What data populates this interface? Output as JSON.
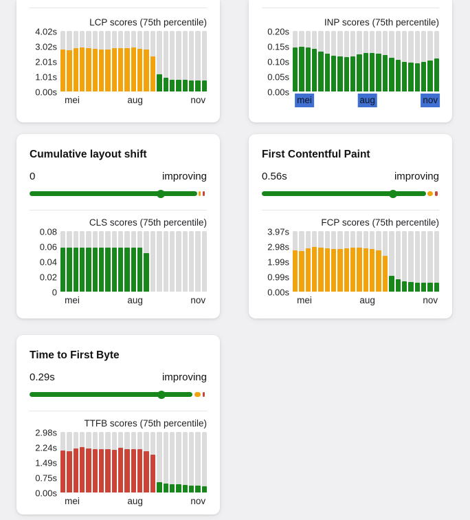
{
  "colors": {
    "green": "#17871c",
    "orange": "#f1a20d",
    "red": "#cc4437",
    "track": "#dcdcdc",
    "highlight": "#3e6fd1"
  },
  "cards": {
    "lcp": {
      "chart_index": 0
    },
    "inp": {
      "chart_index": 1
    },
    "cls": {
      "title": "Cumulative layout shift",
      "value": "0",
      "trend": "improving",
      "chart_index": 2,
      "bar": {
        "green_pct": 94.5,
        "orange_pct": 1.2,
        "red_pct": 1.0,
        "marker_pct": 74
      }
    },
    "fcp": {
      "title": "First Contentful Paint",
      "value": "0.56s",
      "trend": "improving",
      "chart_index": 3,
      "bar": {
        "green_pct": 92.6,
        "orange_pct": 3.1,
        "red_pct": 1.4,
        "marker_pct": 74
      }
    },
    "ttfb": {
      "title": "Time to First Byte",
      "value": "0.29s",
      "trend": "improving",
      "chart_index": 4,
      "bar": {
        "green_pct": 92.0,
        "orange_pct": 3.5,
        "red_pct": 1.2,
        "marker_pct": 74.5
      }
    }
  },
  "chart_data": [
    {
      "type": "bar",
      "title": "LCP scores (75th percentile)",
      "x": [
        "mei",
        "aug",
        "nov"
      ],
      "yticks": [
        "4.02s",
        "3.02s",
        "2.01s",
        "1.01s",
        "0.00s"
      ],
      "ylim": [
        0,
        4.02
      ],
      "values": [
        2.8,
        2.72,
        2.86,
        2.94,
        2.9,
        2.84,
        2.8,
        2.8,
        2.86,
        2.9,
        2.9,
        2.92,
        2.84,
        2.78,
        2.32,
        1.15,
        0.93,
        0.78,
        0.76,
        0.79,
        0.75,
        0.72,
        0.74
      ],
      "bar_colors": [
        "orange",
        "orange",
        "orange",
        "orange",
        "orange",
        "orange",
        "orange",
        "orange",
        "orange",
        "orange",
        "orange",
        "orange",
        "orange",
        "orange",
        "orange",
        "green",
        "green",
        "green",
        "green",
        "green",
        "green",
        "green",
        "green"
      ],
      "highlight_labels": false
    },
    {
      "type": "bar",
      "title": "INP scores (75th percentile)",
      "x": [
        "mei",
        "aug",
        "nov"
      ],
      "yticks": [
        "0.20s",
        "0.15s",
        "0.10s",
        "0.05s",
        "0.00s"
      ],
      "ylim": [
        0,
        0.2
      ],
      "values": [
        0.145,
        0.147,
        0.145,
        0.14,
        0.131,
        0.126,
        0.119,
        0.115,
        0.114,
        0.117,
        0.123,
        0.127,
        0.128,
        0.126,
        0.12,
        0.112,
        0.105,
        0.098,
        0.095,
        0.094,
        0.097,
        0.102,
        0.108
      ],
      "bar_colors": [
        "green",
        "green",
        "green",
        "green",
        "green",
        "green",
        "green",
        "green",
        "green",
        "green",
        "green",
        "green",
        "green",
        "green",
        "green",
        "green",
        "green",
        "green",
        "green",
        "green",
        "green",
        "green",
        "green"
      ],
      "highlight_labels": true
    },
    {
      "type": "bar",
      "title": "CLS scores (75th percentile)",
      "x": [
        "mei",
        "aug",
        "nov"
      ],
      "yticks": [
        "0.08",
        "0.06",
        "0.04",
        "0.02",
        "0"
      ],
      "ylim": [
        0,
        0.08
      ],
      "values": [
        0.058,
        0.058,
        0.058,
        0.058,
        0.058,
        0.058,
        0.058,
        0.058,
        0.058,
        0.058,
        0.058,
        0.058,
        0.058,
        0.051,
        0,
        0,
        0,
        0,
        0,
        0,
        0,
        0,
        0
      ],
      "bar_colors": [
        "green",
        "green",
        "green",
        "green",
        "green",
        "green",
        "green",
        "green",
        "green",
        "green",
        "green",
        "green",
        "green",
        "green",
        "none",
        "none",
        "none",
        "none",
        "none",
        "none",
        "none",
        "none",
        "none"
      ],
      "highlight_labels": false
    },
    {
      "type": "bar",
      "title": "FCP scores (75th percentile)",
      "x": [
        "mei",
        "aug",
        "nov"
      ],
      "yticks": [
        "3.97s",
        "2.98s",
        "1.99s",
        "0.99s",
        "0.00s"
      ],
      "ylim": [
        0,
        3.97
      ],
      "values": [
        2.7,
        2.64,
        2.86,
        2.92,
        2.88,
        2.86,
        2.8,
        2.8,
        2.84,
        2.88,
        2.88,
        2.86,
        2.78,
        2.7,
        2.34,
        1.06,
        0.82,
        0.68,
        0.62,
        0.6,
        0.57,
        0.57,
        0.6
      ],
      "bar_colors": [
        "orange",
        "orange",
        "orange",
        "orange",
        "orange",
        "orange",
        "orange",
        "orange",
        "orange",
        "orange",
        "orange",
        "orange",
        "orange",
        "orange",
        "orange",
        "green",
        "green",
        "green",
        "green",
        "green",
        "green",
        "green",
        "green"
      ],
      "highlight_labels": false
    },
    {
      "type": "bar",
      "title": "TTFB scores (75th percentile)",
      "x": [
        "mei",
        "aug",
        "nov"
      ],
      "yticks": [
        "2.98s",
        "2.24s",
        "1.49s",
        "0.75s",
        "0.00s"
      ],
      "ylim": [
        0,
        2.98
      ],
      "values": [
        2.05,
        2.04,
        2.18,
        2.22,
        2.17,
        2.14,
        2.12,
        2.12,
        2.1,
        2.19,
        2.15,
        2.14,
        2.14,
        2.04,
        1.85,
        0.5,
        0.43,
        0.39,
        0.41,
        0.38,
        0.35,
        0.34,
        0.32
      ],
      "bar_colors": [
        "red",
        "red",
        "red",
        "red",
        "red",
        "red",
        "red",
        "red",
        "red",
        "red",
        "red",
        "red",
        "red",
        "red",
        "red",
        "green",
        "green",
        "green",
        "green",
        "green",
        "green",
        "green",
        "green"
      ],
      "highlight_labels": false
    }
  ]
}
